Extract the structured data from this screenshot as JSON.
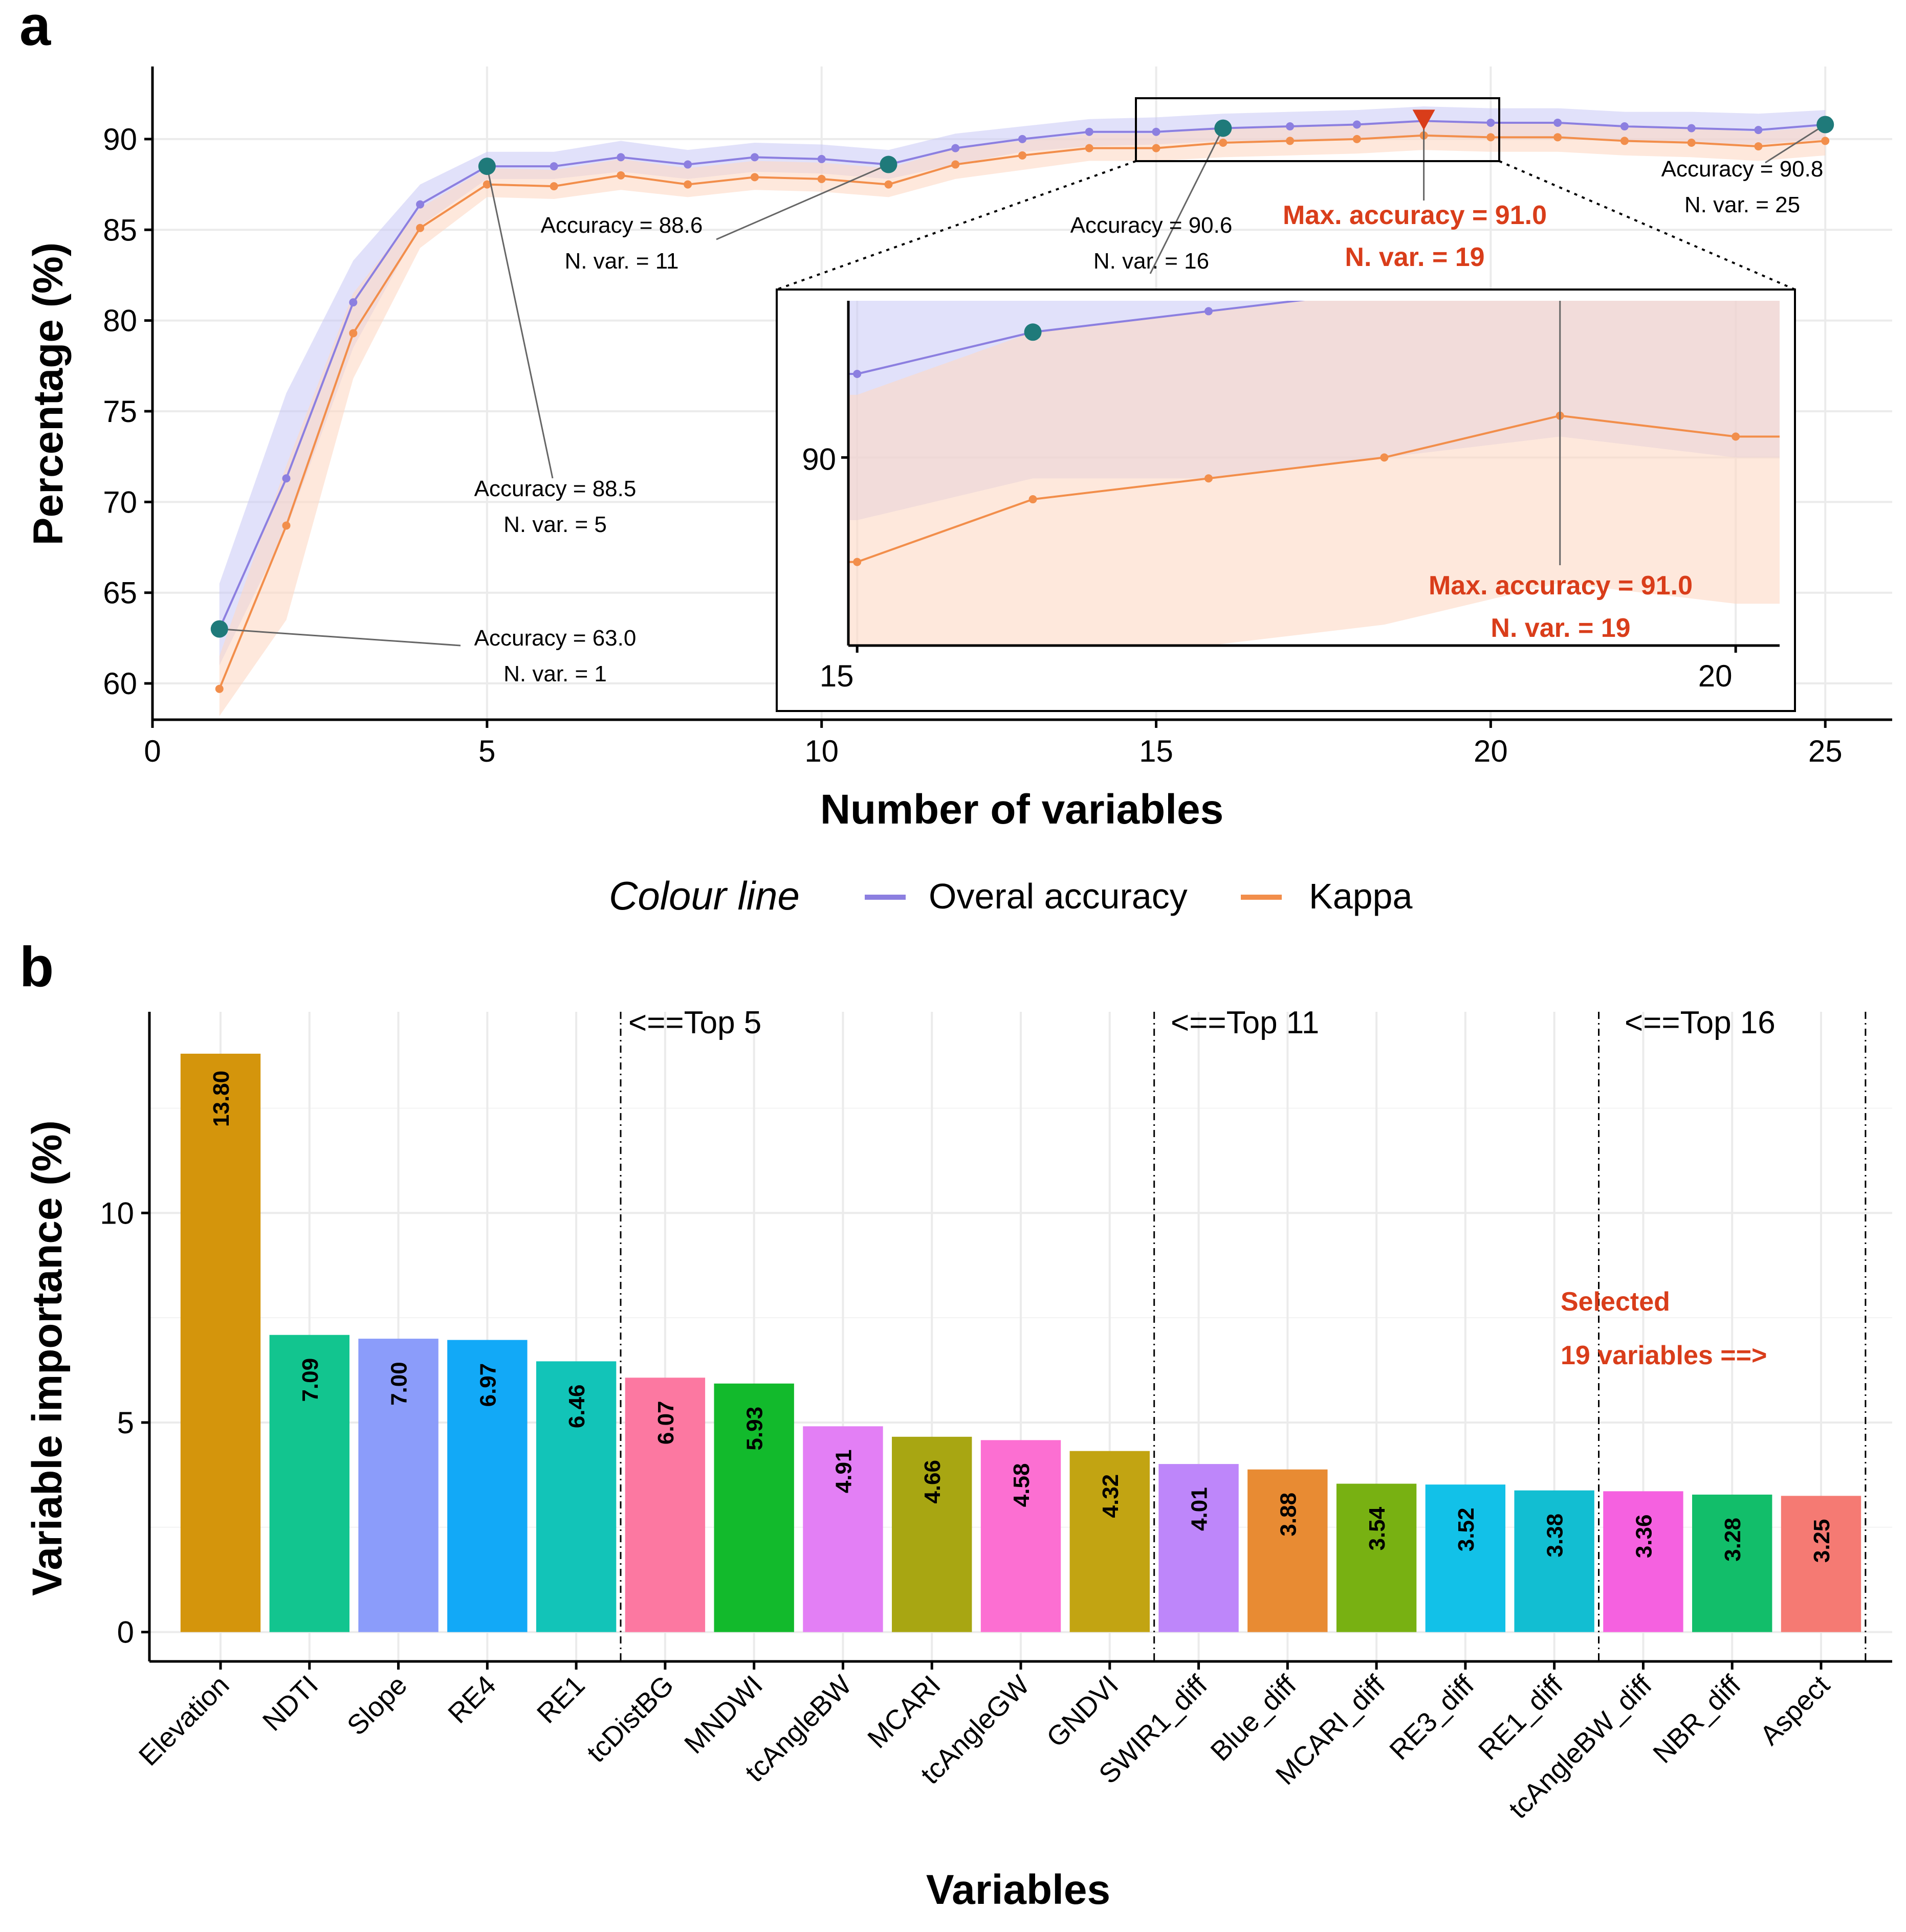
{
  "panel_a": {
    "letter": "a"
  },
  "panel_b": {
    "letter": "b"
  },
  "chart_data": [
    {
      "type": "line",
      "title": "",
      "xlabel": "Number of variables",
      "ylabel": "Percentage (%)",
      "xlim": [
        0,
        26
      ],
      "ylim": [
        58,
        94
      ],
      "xticks": [
        "0",
        "5",
        "10",
        "15",
        "20",
        "25"
      ],
      "yticks": [
        "60",
        "65",
        "70",
        "75",
        "80",
        "85",
        "90"
      ],
      "x": [
        1,
        2,
        3,
        4,
        5,
        6,
        7,
        8,
        9,
        10,
        11,
        12,
        13,
        14,
        15,
        16,
        17,
        18,
        19,
        20,
        21,
        22,
        23,
        24,
        25
      ],
      "series": [
        {
          "name": "Overal accuracy",
          "color": "#8C7FE0",
          "band_color": "#C9C9F6",
          "values": [
            63.0,
            71.3,
            81.0,
            86.4,
            88.5,
            88.5,
            89.0,
            88.6,
            89.0,
            88.9,
            88.6,
            89.5,
            90.0,
            90.4,
            90.4,
            90.6,
            90.7,
            90.8,
            91.0,
            90.9,
            90.9,
            90.7,
            90.6,
            90.5,
            90.8
          ],
          "lower": [
            61.0,
            68.5,
            78.5,
            85.2,
            87.8,
            87.8,
            88.2,
            87.8,
            88.2,
            88.1,
            87.8,
            88.6,
            89.3,
            89.6,
            89.7,
            89.9,
            89.9,
            90.0,
            90.1,
            90.0,
            90.0,
            89.9,
            89.8,
            89.7,
            90.0
          ],
          "upper": [
            65.5,
            76.0,
            83.3,
            87.5,
            89.3,
            89.3,
            89.9,
            89.4,
            89.8,
            89.7,
            89.4,
            90.3,
            90.7,
            91.1,
            91.2,
            91.4,
            91.5,
            91.6,
            91.8,
            91.7,
            91.7,
            91.5,
            91.5,
            91.4,
            91.6
          ]
        },
        {
          "name": "Kappa",
          "color": "#F28E4B",
          "band_color": "#FDD9C4",
          "values": [
            59.7,
            68.7,
            79.3,
            85.1,
            87.5,
            87.4,
            88.0,
            87.5,
            87.9,
            87.8,
            87.5,
            88.6,
            89.1,
            89.5,
            89.5,
            89.8,
            89.9,
            90.0,
            90.2,
            90.1,
            90.1,
            89.9,
            89.8,
            89.6,
            89.9
          ],
          "lower": [
            58.2,
            63.5,
            76.8,
            84.0,
            86.8,
            86.7,
            87.2,
            86.8,
            87.2,
            87.1,
            86.8,
            87.8,
            88.3,
            88.8,
            88.8,
            89.0,
            89.1,
            89.2,
            89.4,
            89.3,
            89.3,
            89.1,
            89.0,
            88.8,
            89.1
          ],
          "upper": [
            61.5,
            72.0,
            81.5,
            86.2,
            88.4,
            88.3,
            88.9,
            88.4,
            88.8,
            88.7,
            88.4,
            89.5,
            89.9,
            90.3,
            90.3,
            90.6,
            90.7,
            90.8,
            91.0,
            90.9,
            90.9,
            90.7,
            90.6,
            90.4,
            90.7
          ]
        }
      ],
      "highlights": [
        {
          "x": 1,
          "y": 63.0,
          "accuracy": "Accuracy = 63.0",
          "nvar": "N. var. = 1"
        },
        {
          "x": 5,
          "y": 88.5,
          "accuracy": "Accuracy = 88.5",
          "nvar": "N. var. = 5"
        },
        {
          "x": 11,
          "y": 88.6,
          "accuracy": "Accuracy = 88.6",
          "nvar": "N. var. = 11"
        },
        {
          "x": 16,
          "y": 90.6,
          "accuracy": "Accuracy = 90.6",
          "nvar": "N. var. = 16"
        },
        {
          "x": 25,
          "y": 90.8,
          "accuracy": "Accuracy = 90.8",
          "nvar": "N. var. = 25"
        }
      ],
      "max_point": {
        "x": 19,
        "y": 91.0,
        "accuracy": "Max. accuracy = 91.0",
        "nvar": "N. var. = 19",
        "color": "#D93D1A"
      },
      "highlight_color": "#1F7A7A",
      "inset": {
        "xlim": [
          14.95,
          20.25
        ],
        "ylim": [
          89.1,
          90.75
        ],
        "xticks": [
          "15",
          "20"
        ],
        "yticks": [
          "90"
        ]
      },
      "legend": {
        "title": "Colour line",
        "position": "bottom",
        "items": [
          "Overal accuracy",
          "Kappa"
        ]
      }
    },
    {
      "type": "bar",
      "title": "",
      "xlabel": "Variables",
      "ylabel": "Variable importance (%)",
      "ylim": [
        -0.7,
        14.8
      ],
      "yticks": [
        "0",
        "5",
        "10"
      ],
      "categories": [
        "Elevation",
        "NDTI",
        "Slope",
        "RE4",
        "RE1",
        "tcDistBG",
        "MNDWI",
        "tcAngleBW",
        "MCARI",
        "tcAngleGW",
        "GNDVI",
        "SWIR1_diff",
        "Blue_diff",
        "MCARI_diff",
        "RE3_diff",
        "RE1_diff",
        "tcAngleBW_diff",
        "NBR_diff",
        "Aspect"
      ],
      "values": [
        13.8,
        7.09,
        7.0,
        6.97,
        6.46,
        6.07,
        5.93,
        4.91,
        4.66,
        4.58,
        4.32,
        4.01,
        3.88,
        3.54,
        3.52,
        3.38,
        3.36,
        3.28,
        3.25
      ],
      "value_labels": [
        "13.80",
        "7.09",
        "7.00",
        "6.97",
        "6.46",
        "6.07",
        "5.93",
        "4.91",
        "4.66",
        "4.58",
        "4.32",
        "4.01",
        "3.88",
        "3.54",
        "3.52",
        "3.38",
        "3.36",
        "3.28",
        "3.25"
      ],
      "colors": [
        "#D4950C",
        "#12C58F",
        "#8B9CFA",
        "#12A9F7",
        "#12C4B8",
        "#FC78A1",
        "#12BA2C",
        "#E37FF5",
        "#A8A612",
        "#FC6FD2",
        "#C2A412",
        "#BE86FA",
        "#E88B33",
        "#78B112",
        "#12C1E8",
        "#12BED2",
        "#F561E0",
        "#12BE6A",
        "#F57A73"
      ],
      "cutoff_labels": [
        "<==Top 5",
        "<==Top 11",
        "<==Top 16"
      ],
      "cutoffs_after": [
        5,
        11,
        16,
        19
      ],
      "selected_note": [
        "Selected",
        "19 variables ==>"
      ],
      "selected_color": "#D93D1A"
    }
  ]
}
